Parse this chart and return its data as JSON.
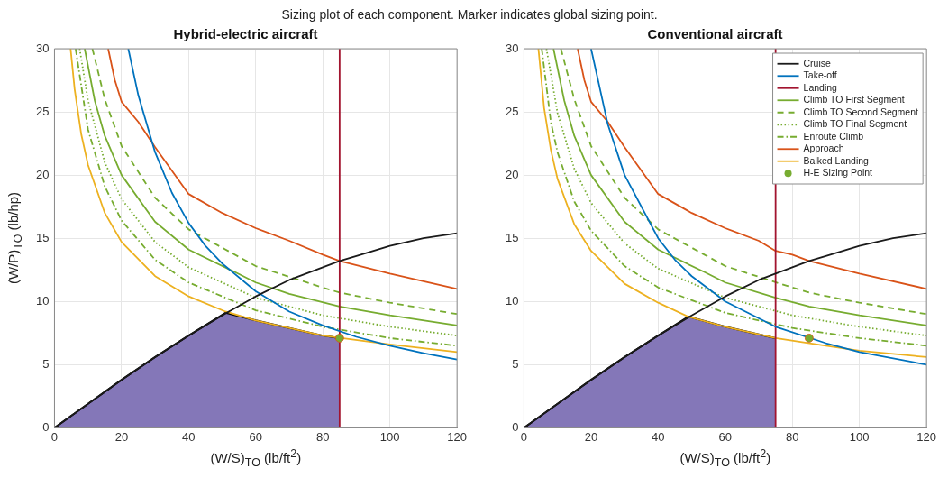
{
  "chart_data": [
    {
      "type": "line",
      "title": "Hybrid-electric aircraft",
      "annotations": [
        "Sizing plot of each component. Marker indicates global sizing point."
      ],
      "xlabel": "(W/S)$_{TO}$ (lb/ft$^{2}$)",
      "ylabel": "(W/P)$_{TO}$ (lb/hp)",
      "xlim": [
        0,
        120
      ],
      "xticks": [
        0,
        20,
        40,
        60,
        80,
        100,
        120
      ],
      "ylim": [
        0,
        30
      ],
      "yticks": [
        0,
        5,
        10,
        15,
        20,
        25,
        30
      ],
      "grid": true,
      "legend": false,
      "marker": "none",
      "series": [
        {
          "type": "area",
          "color": "#8477b8",
          "x": [
            0,
            10,
            20,
            30,
            40,
            51,
            60,
            70,
            80,
            85
          ],
          "values": [
            0,
            1.9,
            3.8,
            5.6,
            7.3,
            9.1,
            8.5,
            7.9,
            7.3,
            7.1
          ]
        },
        {
          "color": "#1a1a1a",
          "line_style": "solid",
          "x": [
            0,
            10,
            20,
            30,
            40,
            50,
            60,
            70,
            80,
            85,
            90,
            100,
            110,
            120
          ],
          "values": [
            0,
            1.9,
            3.8,
            5.6,
            7.3,
            8.9,
            10.4,
            11.7,
            12.7,
            13.2,
            13.6,
            14.4,
            15.0,
            15.4
          ]
        },
        {
          "color": "#0072bd",
          "line_style": "solid",
          "x": [
            22,
            25,
            30,
            35,
            40,
            45,
            50,
            60,
            70,
            80,
            90,
            100,
            110,
            120
          ],
          "values": [
            30,
            26.3,
            21.8,
            18.6,
            16.2,
            14.4,
            13.0,
            10.8,
            9.2,
            8.1,
            7.2,
            6.5,
            5.9,
            5.4
          ]
        },
        {
          "color": "#a2142f",
          "line_style": "solid",
          "x": [
            85,
            85
          ],
          "values": [
            0,
            30
          ]
        },
        {
          "color": "#77ac30",
          "line_style": "solid",
          "x": [
            9,
            12,
            15,
            20,
            30,
            40,
            54,
            60,
            70,
            85,
            100,
            120
          ],
          "values": [
            30,
            25.9,
            23.1,
            20.0,
            16.3,
            14.1,
            12.3,
            11.5,
            10.6,
            9.6,
            8.9,
            8.1
          ]
        },
        {
          "color": "#77ac30",
          "line_style": "dashed",
          "x": [
            11.3,
            15,
            20,
            30,
            40,
            60,
            80,
            85,
            100,
            120
          ],
          "values": [
            30,
            26.0,
            22.3,
            18.2,
            15.7,
            12.8,
            11.1,
            10.7,
            9.9,
            9.0
          ]
        },
        {
          "color": "#77ac30",
          "line_style": "dotted",
          "x": [
            7.5,
            10,
            15,
            20,
            30,
            40,
            60,
            80,
            100,
            120
          ],
          "values": [
            30,
            25.9,
            21.0,
            18.1,
            14.7,
            12.7,
            10.3,
            8.9,
            8.0,
            7.3
          ]
        },
        {
          "color": "#77ac30",
          "line_style": "dashdot",
          "x": [
            6.3,
            10,
            15,
            20,
            30,
            40,
            60,
            80,
            100,
            120
          ],
          "values": [
            30,
            23.6,
            19.1,
            16.4,
            13.3,
            11.5,
            9.3,
            8.0,
            7.1,
            6.5
          ]
        },
        {
          "color": "#d95319",
          "line_style": "solid",
          "x": [
            16,
            18,
            20,
            25,
            30,
            40,
            50,
            60,
            70,
            80,
            85,
            100,
            120
          ],
          "values": [
            30,
            27.5,
            25.8,
            24.2,
            22.2,
            18.5,
            17.0,
            15.8,
            14.8,
            13.7,
            13.2,
            12.2,
            11.0
          ]
        },
        {
          "color": "#edb120",
          "line_style": "solid",
          "x": [
            4.8,
            6,
            8,
            10,
            15,
            20,
            30,
            40,
            51,
            60,
            80,
            100,
            120
          ],
          "values": [
            30,
            26.8,
            23.2,
            20.8,
            17.0,
            14.7,
            12.0,
            10.4,
            9.2,
            8.5,
            7.3,
            6.6,
            6.0
          ]
        },
        {
          "type": "scatter",
          "marker": "circle",
          "color": "#77ac30",
          "x": [
            85
          ],
          "values": [
            7.1
          ]
        }
      ]
    },
    {
      "type": "line",
      "title": "Conventional aircraft",
      "xlabel": "(W/S)$_{TO}$ (lb/ft$^{2}$)",
      "xlim": [
        0,
        120
      ],
      "xticks": [
        0,
        20,
        40,
        60,
        80,
        100,
        120
      ],
      "ylim": [
        0,
        30
      ],
      "yticks": [
        0,
        5,
        10,
        15,
        20,
        25,
        30
      ],
      "grid": true,
      "legend": "top right",
      "marker": "none",
      "series": [
        {
          "type": "area",
          "color": "#8477b8",
          "x": [
            0,
            10,
            20,
            30,
            40,
            49,
            60,
            70,
            75
          ],
          "values": [
            0,
            1.9,
            3.8,
            5.6,
            7.3,
            8.8,
            8.0,
            7.4,
            7.1
          ]
        },
        {
          "name": "Cruise",
          "color": "#1a1a1a",
          "line_style": "solid",
          "x": [
            0,
            10,
            20,
            30,
            40,
            50,
            60,
            70,
            80,
            85,
            90,
            100,
            110,
            120
          ],
          "values": [
            0,
            1.9,
            3.8,
            5.6,
            7.3,
            8.9,
            10.4,
            11.7,
            12.7,
            13.2,
            13.6,
            14.4,
            15.0,
            15.4
          ]
        },
        {
          "name": "Take-off",
          "color": "#0072bd",
          "line_style": "solid",
          "x": [
            20,
            25,
            30,
            40,
            45,
            50,
            60,
            75,
            90,
            100,
            120
          ],
          "values": [
            30,
            24,
            20,
            15,
            13.3,
            12,
            10,
            8,
            6.7,
            6,
            5
          ]
        },
        {
          "name": "Landing",
          "color": "#a2142f",
          "line_style": "solid",
          "x": [
            75,
            75
          ],
          "values": [
            0,
            30
          ]
        },
        {
          "name": "Climb TO First Segment",
          "color": "#77ac30",
          "line_style": "solid",
          "x": [
            8.8,
            12,
            15,
            20,
            30,
            40,
            54,
            60,
            75,
            85,
            100,
            120
          ],
          "values": [
            30,
            25.9,
            23.1,
            20.0,
            16.3,
            14.1,
            12.3,
            11.5,
            10.3,
            9.6,
            8.9,
            8.1
          ]
        },
        {
          "name": "Climb TO Second Segment",
          "color": "#77ac30",
          "line_style": "dashed",
          "x": [
            11,
            15,
            20,
            30,
            40,
            60,
            80,
            85,
            100,
            120
          ],
          "values": [
            30,
            26.0,
            22.3,
            18.2,
            15.7,
            12.8,
            11.1,
            10.7,
            9.9,
            9.0
          ]
        },
        {
          "name": "Climb TO Final Segment",
          "color": "#77ac30",
          "line_style": "dotted",
          "x": [
            6.7,
            10,
            15,
            20,
            30,
            40,
            60,
            80,
            100,
            120
          ],
          "values": [
            30,
            24.9,
            20.5,
            17.8,
            14.6,
            12.6,
            10.3,
            8.9,
            8.0,
            7.3
          ]
        },
        {
          "name": "Enroute Climb",
          "color": "#77ac30",
          "line_style": "dashdot",
          "x": [
            5.3,
            8,
            10,
            15,
            20,
            30,
            40,
            60,
            80,
            100,
            120
          ],
          "values": [
            30,
            24.2,
            21.8,
            17.9,
            15.6,
            12.8,
            11.1,
            9.1,
            7.9,
            7.1,
            6.5
          ]
        },
        {
          "name": "Approach",
          "color": "#d95319",
          "line_style": "solid",
          "x": [
            16,
            18,
            20,
            25,
            30,
            40,
            50,
            60,
            70,
            75,
            80,
            85,
            100,
            120
          ],
          "values": [
            30,
            27.5,
            25.8,
            24.2,
            22.2,
            18.5,
            17.0,
            15.8,
            14.8,
            14.0,
            13.7,
            13.2,
            12.2,
            11.0
          ]
        },
        {
          "name": "Balked Landing",
          "color": "#edb120",
          "line_style": "solid",
          "x": [
            4.3,
            6,
            8,
            10,
            15,
            20,
            30,
            40,
            49,
            60,
            75,
            90,
            100,
            120
          ],
          "values": [
            30,
            25.3,
            22.0,
            19.7,
            16.1,
            14.0,
            11.4,
            9.9,
            8.8,
            8.0,
            7.1,
            6.5,
            6.1,
            5.6
          ]
        },
        {
          "name": "H-E Sizing Point",
          "type": "scatter",
          "marker": "circle",
          "color": "#77ac30",
          "x": [
            85
          ],
          "values": [
            7.1
          ]
        }
      ]
    }
  ]
}
